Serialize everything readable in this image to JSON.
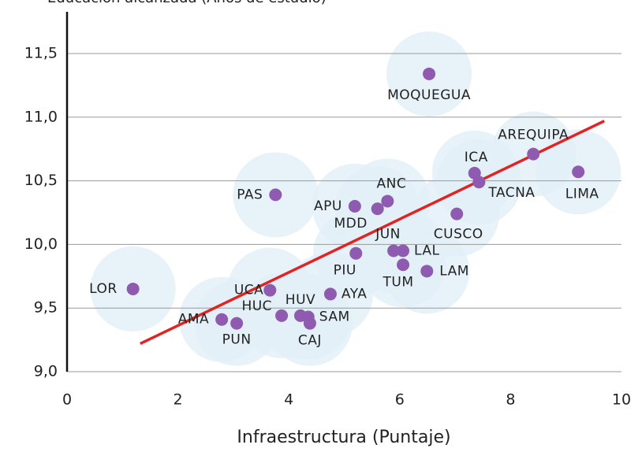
{
  "chart_data": {
    "type": "scatter",
    "y_label": "Educación alcanzada (Años de estudio)",
    "x_label": "Infraestructura (Puntaje)",
    "xlim": [
      0,
      10
    ],
    "ylim": [
      9.0,
      11.8
    ],
    "xticks": [
      0,
      2,
      4,
      6,
      8,
      10
    ],
    "yticks": [
      {
        "value": 9.0,
        "label": "9,0"
      },
      {
        "value": 9.5,
        "label": "9,5"
      },
      {
        "value": 10.0,
        "label": "10,0"
      },
      {
        "value": 10.5,
        "label": "10,5"
      },
      {
        "value": 11.0,
        "label": "11,0"
      },
      {
        "value": 11.5,
        "label": "11,5"
      }
    ],
    "grid": true,
    "color": "#8e5bb0",
    "halo_color": "#e3f0f8",
    "labels": [
      "LOR",
      "AMA",
      "PUN",
      "UCA",
      "HUC",
      "PAS",
      "HUV",
      "SAM",
      "CAJ",
      "AYA",
      "PIU",
      "APU",
      "MDD",
      "ANC",
      "JUN",
      "LAL",
      "TUM",
      "LAM",
      "MOQUEGUA",
      "CUSCO",
      "ICA",
      "TACNA",
      "AREQUIPA",
      "LIMA"
    ],
    "x": [
      1.19,
      2.79,
      3.06,
      3.66,
      3.87,
      3.76,
      4.21,
      4.35,
      4.38,
      4.75,
      5.21,
      5.19,
      5.6,
      5.78,
      5.89,
      6.06,
      6.06,
      6.49,
      6.53,
      7.03,
      7.35,
      7.43,
      8.41,
      9.22
    ],
    "values": [
      9.65,
      9.41,
      9.38,
      9.64,
      9.44,
      10.39,
      9.44,
      9.43,
      9.38,
      9.61,
      9.93,
      10.3,
      10.28,
      10.34,
      9.95,
      9.95,
      9.84,
      9.79,
      11.34,
      10.24,
      10.56,
      10.49,
      10.71,
      10.57
    ],
    "trendline": {
      "x": [
        1.32,
        9.69
      ],
      "y": [
        9.22,
        10.97
      ],
      "color": "#e02424"
    }
  }
}
